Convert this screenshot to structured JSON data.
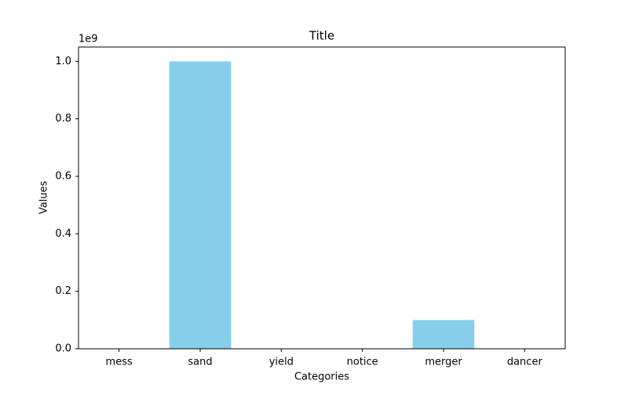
{
  "chart_data": {
    "type": "bar",
    "title": "Title",
    "x_label": "Categories",
    "y_label": "Values",
    "y_offset_label": "1e9",
    "categories": [
      "mess",
      "sand",
      "yield",
      "notice",
      "merger",
      "dancer"
    ],
    "values": [
      0,
      1000000000,
      0,
      0,
      100000000,
      0
    ],
    "color": "#87ceeb",
    "ylim": [
      0,
      1050000000
    ],
    "yticks": [
      {
        "value": 0,
        "label": "0.0"
      },
      {
        "value": 200000000,
        "label": "0.2"
      },
      {
        "value": 400000000,
        "label": "0.4"
      },
      {
        "value": 600000000,
        "label": "0.6"
      },
      {
        "value": 800000000,
        "label": "0.8"
      },
      {
        "value": 1000000000,
        "label": "1.0"
      }
    ],
    "grid": false
  }
}
